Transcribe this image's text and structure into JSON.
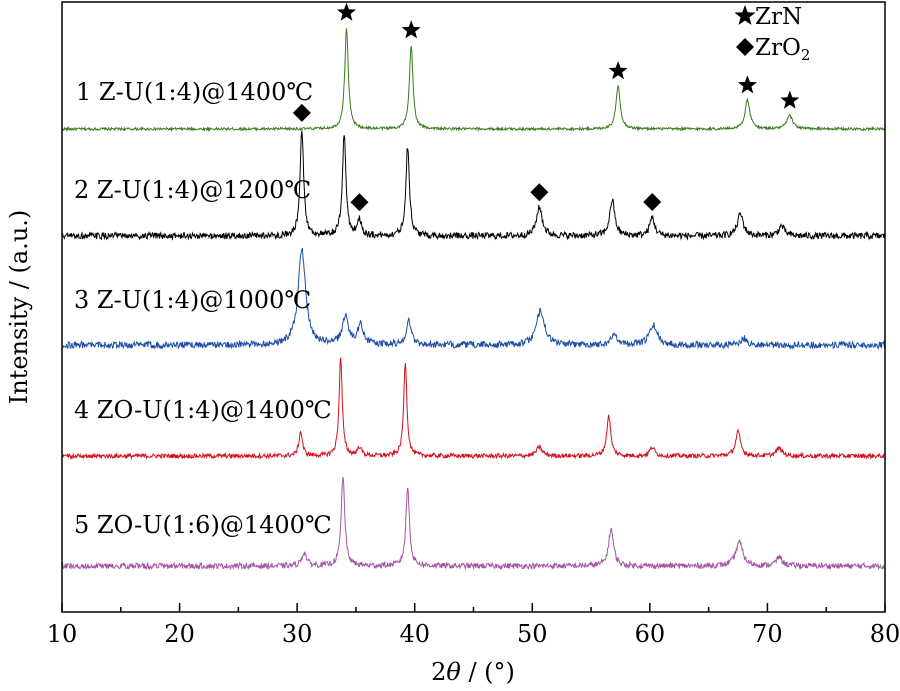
{
  "chart_data": {
    "type": "line",
    "xlabel_prefix": "2",
    "xlabel_var": "θ",
    "xlabel_suffix": " / (°)",
    "ylabel": "Intensity / (a.u.)",
    "xlim": [
      10,
      80
    ],
    "xticks": [
      10,
      20,
      30,
      40,
      50,
      60,
      70,
      80
    ],
    "legend": [
      {
        "symbol": "star",
        "label": "ZrN"
      },
      {
        "symbol": "diamond",
        "label_main": "ZrO",
        "label_sub": "2"
      }
    ],
    "series": [
      {
        "name": "1  Z-U(1:4)@1400℃",
        "color": "#3a7d1e",
        "noise": 1.2,
        "peaks": [
          [
            34.2,
            92,
            0.18
          ],
          [
            39.7,
            76,
            0.18
          ],
          [
            57.3,
            39,
            0.22
          ],
          [
            68.3,
            26,
            0.25
          ],
          [
            71.9,
            12,
            0.3
          ]
        ]
      },
      {
        "name": "2 Z-U(1:4)@1200℃",
        "color": "#000000",
        "noise": 3.0,
        "peaks": [
          [
            30.4,
            98,
            0.18
          ],
          [
            34.0,
            92,
            0.18
          ],
          [
            35.3,
            15,
            0.2
          ],
          [
            39.4,
            82,
            0.18
          ],
          [
            50.6,
            26,
            0.3
          ],
          [
            56.8,
            33,
            0.25
          ],
          [
            60.2,
            17,
            0.25
          ],
          [
            67.7,
            20,
            0.3
          ],
          [
            71.2,
            9,
            0.3
          ]
        ]
      },
      {
        "name": "3 Z-U(1:4)@1000℃",
        "color": "#1f4ea6",
        "noise": 3.0,
        "peaks": [
          [
            30.4,
            86,
            0.38
          ],
          [
            34.1,
            26,
            0.3
          ],
          [
            35.4,
            18,
            0.3
          ],
          [
            39.5,
            22,
            0.25
          ],
          [
            50.7,
            32,
            0.4
          ],
          [
            57.0,
            10,
            0.3
          ],
          [
            60.3,
            18,
            0.4
          ],
          [
            68.0,
            6,
            0.3
          ]
        ]
      },
      {
        "name": "4 ZO-U(1:4)@1400℃",
        "color": "#d4111b",
        "noise": 2.0,
        "peaks": [
          [
            30.3,
            22,
            0.18
          ],
          [
            33.7,
            90,
            0.16
          ],
          [
            35.3,
            8,
            0.2
          ],
          [
            39.2,
            86,
            0.16
          ],
          [
            50.6,
            8,
            0.3
          ],
          [
            56.5,
            37,
            0.2
          ],
          [
            60.2,
            8,
            0.25
          ],
          [
            67.5,
            22,
            0.25
          ],
          [
            71.0,
            7,
            0.3
          ]
        ]
      },
      {
        "name": "5 ZO-U(1:6)@1400℃",
        "color": "#a454a4",
        "noise": 2.5,
        "peaks": [
          [
            30.6,
            12,
            0.25
          ],
          [
            33.9,
            82,
            0.18
          ],
          [
            39.4,
            72,
            0.18
          ],
          [
            56.7,
            34,
            0.25
          ],
          [
            67.6,
            22,
            0.35
          ],
          [
            71.0,
            8,
            0.3
          ]
        ]
      }
    ],
    "markers": [
      {
        "symbol": "star",
        "series": 1,
        "x": 34.2
      },
      {
        "symbol": "star",
        "series": 1,
        "x": 39.7
      },
      {
        "symbol": "star",
        "series": 1,
        "x": 57.3
      },
      {
        "symbol": "star",
        "series": 1,
        "x": 68.3
      },
      {
        "symbol": "star",
        "series": 1,
        "x": 71.9
      },
      {
        "symbol": "diamond",
        "series": 2,
        "x": 30.4
      },
      {
        "symbol": "diamond",
        "series": 2,
        "x": 35.3
      },
      {
        "symbol": "diamond",
        "series": 2,
        "x": 50.6
      },
      {
        "symbol": "diamond",
        "series": 2,
        "x": 60.2
      }
    ]
  }
}
